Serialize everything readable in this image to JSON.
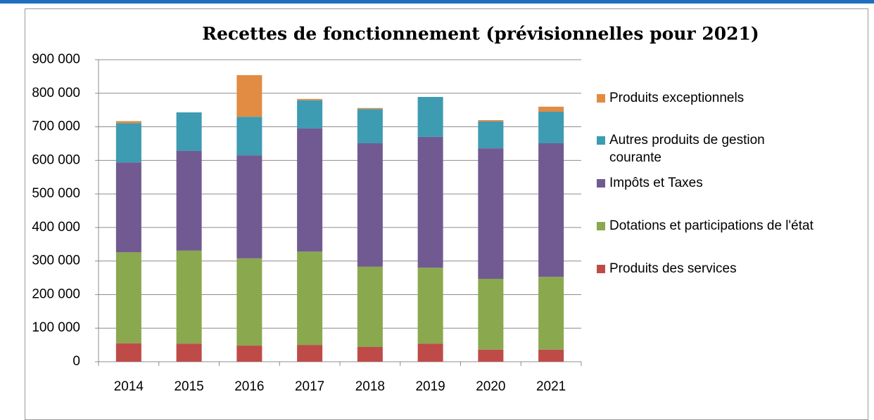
{
  "chart_data": {
    "type": "stacked_bar",
    "title": "Recettes de fonctionnement (prévisionnelles pour 2021)",
    "categories": [
      "2014",
      "2015",
      "2016",
      "2017",
      "2018",
      "2019",
      "2020",
      "2021"
    ],
    "series": [
      {
        "name": "Produits des services",
        "color": "#be4b48",
        "values": [
          55000,
          54000,
          48000,
          50000,
          44000,
          54000,
          36000,
          36000
        ]
      },
      {
        "name": "Dotations et participations de l'état",
        "color": "#8aa84d",
        "values": [
          271000,
          277000,
          260000,
          278000,
          239000,
          226000,
          211000,
          217000
        ]
      },
      {
        "name": "Impôts et Taxes",
        "color": "#715a91",
        "values": [
          268000,
          297000,
          307000,
          367000,
          368000,
          390000,
          389000,
          398000
        ]
      },
      {
        "name": "Autres produits de gestion courante",
        "color": "#3d9bb2",
        "values": [
          117000,
          115000,
          115000,
          84000,
          102000,
          119000,
          80000,
          94000
        ]
      },
      {
        "name": "Produits exceptionnels",
        "color": "#e18b43",
        "values": [
          6000,
          0,
          124000,
          4000,
          3000,
          0,
          4000,
          15000
        ]
      }
    ],
    "ylim": [
      0,
      900000
    ],
    "yticks": [
      0,
      {
        "value": 100000,
        "label": "100 000"
      },
      {
        "value": 200000,
        "label": "200 000"
      },
      {
        "value": 300000,
        "label": "300 000"
      },
      {
        "value": 400000,
        "label": "400 000"
      },
      {
        "value": 500000,
        "label": "500 000"
      },
      {
        "value": 600000,
        "label": "600 000"
      },
      {
        "value": 700000,
        "label": "700 000"
      },
      {
        "value": 800000,
        "label": "800 000"
      },
      {
        "value": 900000,
        "label": "900 000"
      }
    ],
    "grid": true
  }
}
